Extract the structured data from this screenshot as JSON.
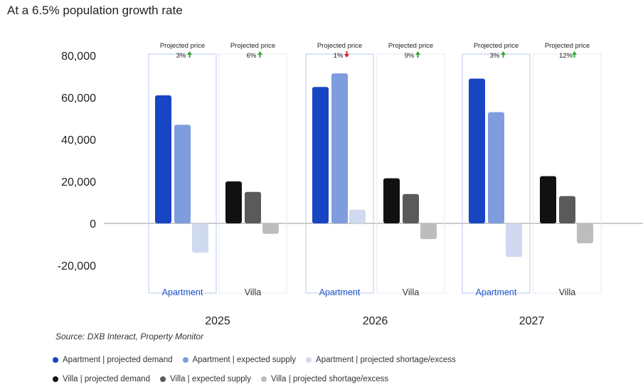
{
  "title": "At a 6.5% population growth rate",
  "source": "Source: DXB Interact, Property Monitor",
  "chart_data": {
    "type": "bar",
    "ylim": [
      -20000,
      80000
    ],
    "yticks": [
      {
        "value": 80000,
        "label": "80,000"
      },
      {
        "value": 60000,
        "label": "60,000"
      },
      {
        "value": 40000,
        "label": "40,000"
      },
      {
        "value": 20000,
        "label": "20,000"
      },
      {
        "value": 0,
        "label": "0"
      },
      {
        "value": -20000,
        "label": "-20,000"
      }
    ],
    "years": [
      "2025",
      "2026",
      "2027"
    ],
    "groups": [
      {
        "year": "2025",
        "category": "Apartment",
        "price_label": "Projected price",
        "price_change": "3%",
        "direction": "up",
        "series": [
          "Apartment | projected demand",
          "Apartment | expected supply",
          "Apartment | projected shortage/excess"
        ],
        "values": [
          61000,
          47000,
          -14000
        ]
      },
      {
        "year": "2025",
        "category": "Villa",
        "price_label": "Projected price",
        "price_change": "6%",
        "direction": "up",
        "series": [
          "Villa | projected demand",
          "Villa | expected supply",
          "Villa | projected shortage/excess"
        ],
        "values": [
          20000,
          15000,
          -5000
        ]
      },
      {
        "year": "2026",
        "category": "Apartment",
        "price_label": "Projected price",
        "price_change": "1%",
        "direction": "down",
        "series": [
          "Apartment | projected demand",
          "Apartment | expected supply",
          "Apartment | projected shortage/excess"
        ],
        "values": [
          65000,
          71500,
          6500
        ]
      },
      {
        "year": "2026",
        "category": "Villa",
        "price_label": "Projected price",
        "price_change": "9%",
        "direction": "up",
        "series": [
          "Villa | projected demand",
          "Villa | expected supply",
          "Villa | projected shortage/excess"
        ],
        "values": [
          21500,
          14000,
          -7500
        ]
      },
      {
        "year": "2027",
        "category": "Apartment",
        "price_label": "Projected price",
        "price_change": "3%",
        "direction": "up",
        "series": [
          "Apartment | projected demand",
          "Apartment | expected supply",
          "Apartment | projected shortage/excess"
        ],
        "values": [
          69000,
          53000,
          -16000
        ]
      },
      {
        "year": "2027",
        "category": "Villa",
        "price_label": "Projected price",
        "price_change": "12%",
        "direction": "up",
        "series": [
          "Villa | projected demand",
          "Villa | expected supply",
          "Villa | projected shortage/excess"
        ],
        "values": [
          22500,
          13000,
          -9500
        ]
      }
    ]
  },
  "legend": {
    "row1": [
      {
        "label": "Apartment | projected demand",
        "color": "#1845c4"
      },
      {
        "label": "Apartment | expected supply",
        "color": "#7f9ddc"
      },
      {
        "label": "Apartment | projected shortage/excess",
        "color": "#cfd9f0"
      }
    ],
    "row2": [
      {
        "label": "Villa | projected demand",
        "color": "#111111"
      },
      {
        "label": "Villa | expected supply",
        "color": "#5a5a5a"
      },
      {
        "label": "Villa | projected shortage/excess",
        "color": "#bdbdbd"
      }
    ]
  },
  "colors": {
    "apartment": [
      "#1845c4",
      "#7f9ddc",
      "#cfd9f0"
    ],
    "villa": [
      "#111111",
      "#5a5a5a",
      "#bdbdbd"
    ],
    "apartment_label": "#2457c9",
    "box_apartment": "#b7c9ef",
    "box_villa": "#e6e9ef",
    "arrow_up": "#2fa82f",
    "arrow_down": "#d22424"
  }
}
